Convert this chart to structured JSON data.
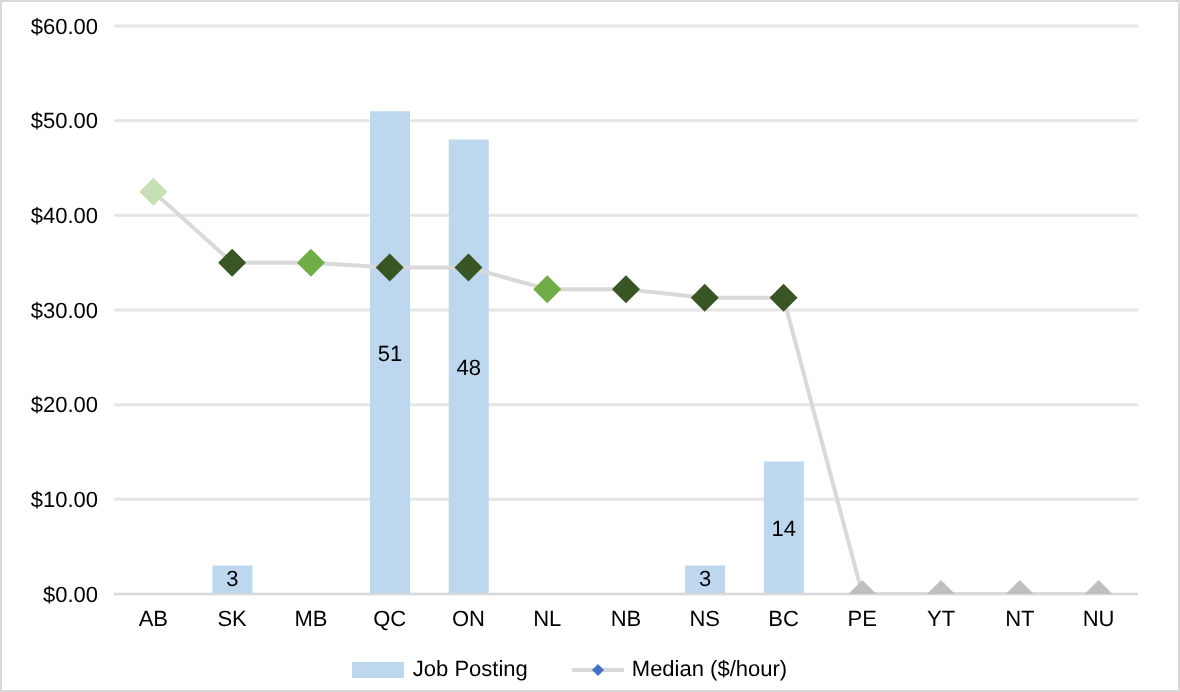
{
  "chart_data": {
    "type": "bar",
    "categories": [
      "AB",
      "SK",
      "MB",
      "QC",
      "ON",
      "NL",
      "NB",
      "NS",
      "BC",
      "PE",
      "YT",
      "NT",
      "NU"
    ],
    "series": [
      {
        "name": "Job Posting",
        "color": "#bdd7ee",
        "values": [
          null,
          3,
          null,
          51,
          48,
          null,
          null,
          3,
          14,
          null,
          null,
          null,
          null
        ],
        "value_labels": [
          null,
          "3",
          null,
          "51",
          "48",
          null,
          null,
          "3",
          "14",
          null,
          null,
          null,
          null
        ]
      },
      {
        "name": "Median ($/hour)",
        "type": "line",
        "color": "#d9d9d9",
        "marker": "diamond",
        "values": [
          42.5,
          35,
          35,
          34.5,
          34.5,
          32.2,
          32.2,
          31.3,
          31.3,
          0,
          0,
          0,
          0
        ],
        "colors": [
          "#c5e0b4",
          "#375623",
          "#70ad47",
          "#375623",
          "#375623",
          "#70ad47",
          "#375623",
          "#375623",
          "#375623",
          "#bfbfbf",
          "#bfbfbf",
          "#bfbfbf",
          "#bfbfbf"
        ]
      }
    ],
    "ylim": [
      0,
      60
    ],
    "yticks": [
      {
        "value": 0,
        "label": "$0.00"
      },
      {
        "value": 10,
        "label": "$10.00"
      },
      {
        "value": 20,
        "label": "$20.00"
      },
      {
        "value": 30,
        "label": "$30.00"
      },
      {
        "value": 40,
        "label": "$40.00"
      },
      {
        "value": 50,
        "label": "$50.00"
      },
      {
        "value": 60,
        "label": "$60.00"
      }
    ],
    "grid": "y",
    "legend": "bottom"
  }
}
